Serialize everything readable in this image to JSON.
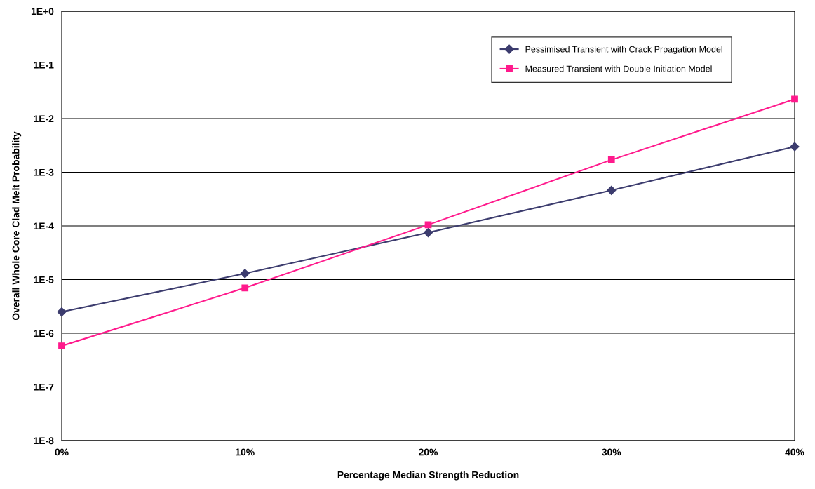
{
  "chart_data": {
    "type": "line",
    "xlabel": "Percentage Median Strength Reduction",
    "ylabel": "Overall Whole Core Clad Melt Probability",
    "categories": [
      "0%",
      "10%",
      "20%",
      "30%",
      "40%"
    ],
    "series": [
      {
        "name": "Pessimised Transient with Crack Prpagation Model",
        "color": "#3c3c6e",
        "marker": "diamond",
        "values": [
          2.5e-06,
          1.3e-05,
          7.5e-05,
          0.00046,
          0.003
        ]
      },
      {
        "name": "Measured Transient with Double Initiation Model",
        "color": "#ff1a8c",
        "marker": "square",
        "values": [
          5.8e-07,
          7e-06,
          0.000105,
          0.0017,
          0.023
        ]
      }
    ],
    "log": "y",
    "ylim": [
      1e-08,
      1
    ],
    "yticks": [
      {
        "value": 1e-08,
        "label": "1E-8"
      },
      {
        "value": 1e-07,
        "label": "1E-7"
      },
      {
        "value": 1e-06,
        "label": "1E-6"
      },
      {
        "value": 1e-05,
        "label": "1E-5"
      },
      {
        "value": 0.0001,
        "label": "1E-4"
      },
      {
        "value": 0.001,
        "label": "1E-3"
      },
      {
        "value": 0.01,
        "label": "1E-2"
      },
      {
        "value": 0.1,
        "label": "1E-1"
      },
      {
        "value": 1,
        "label": "1E+0"
      }
    ],
    "grid": "y",
    "legend": "top right"
  }
}
